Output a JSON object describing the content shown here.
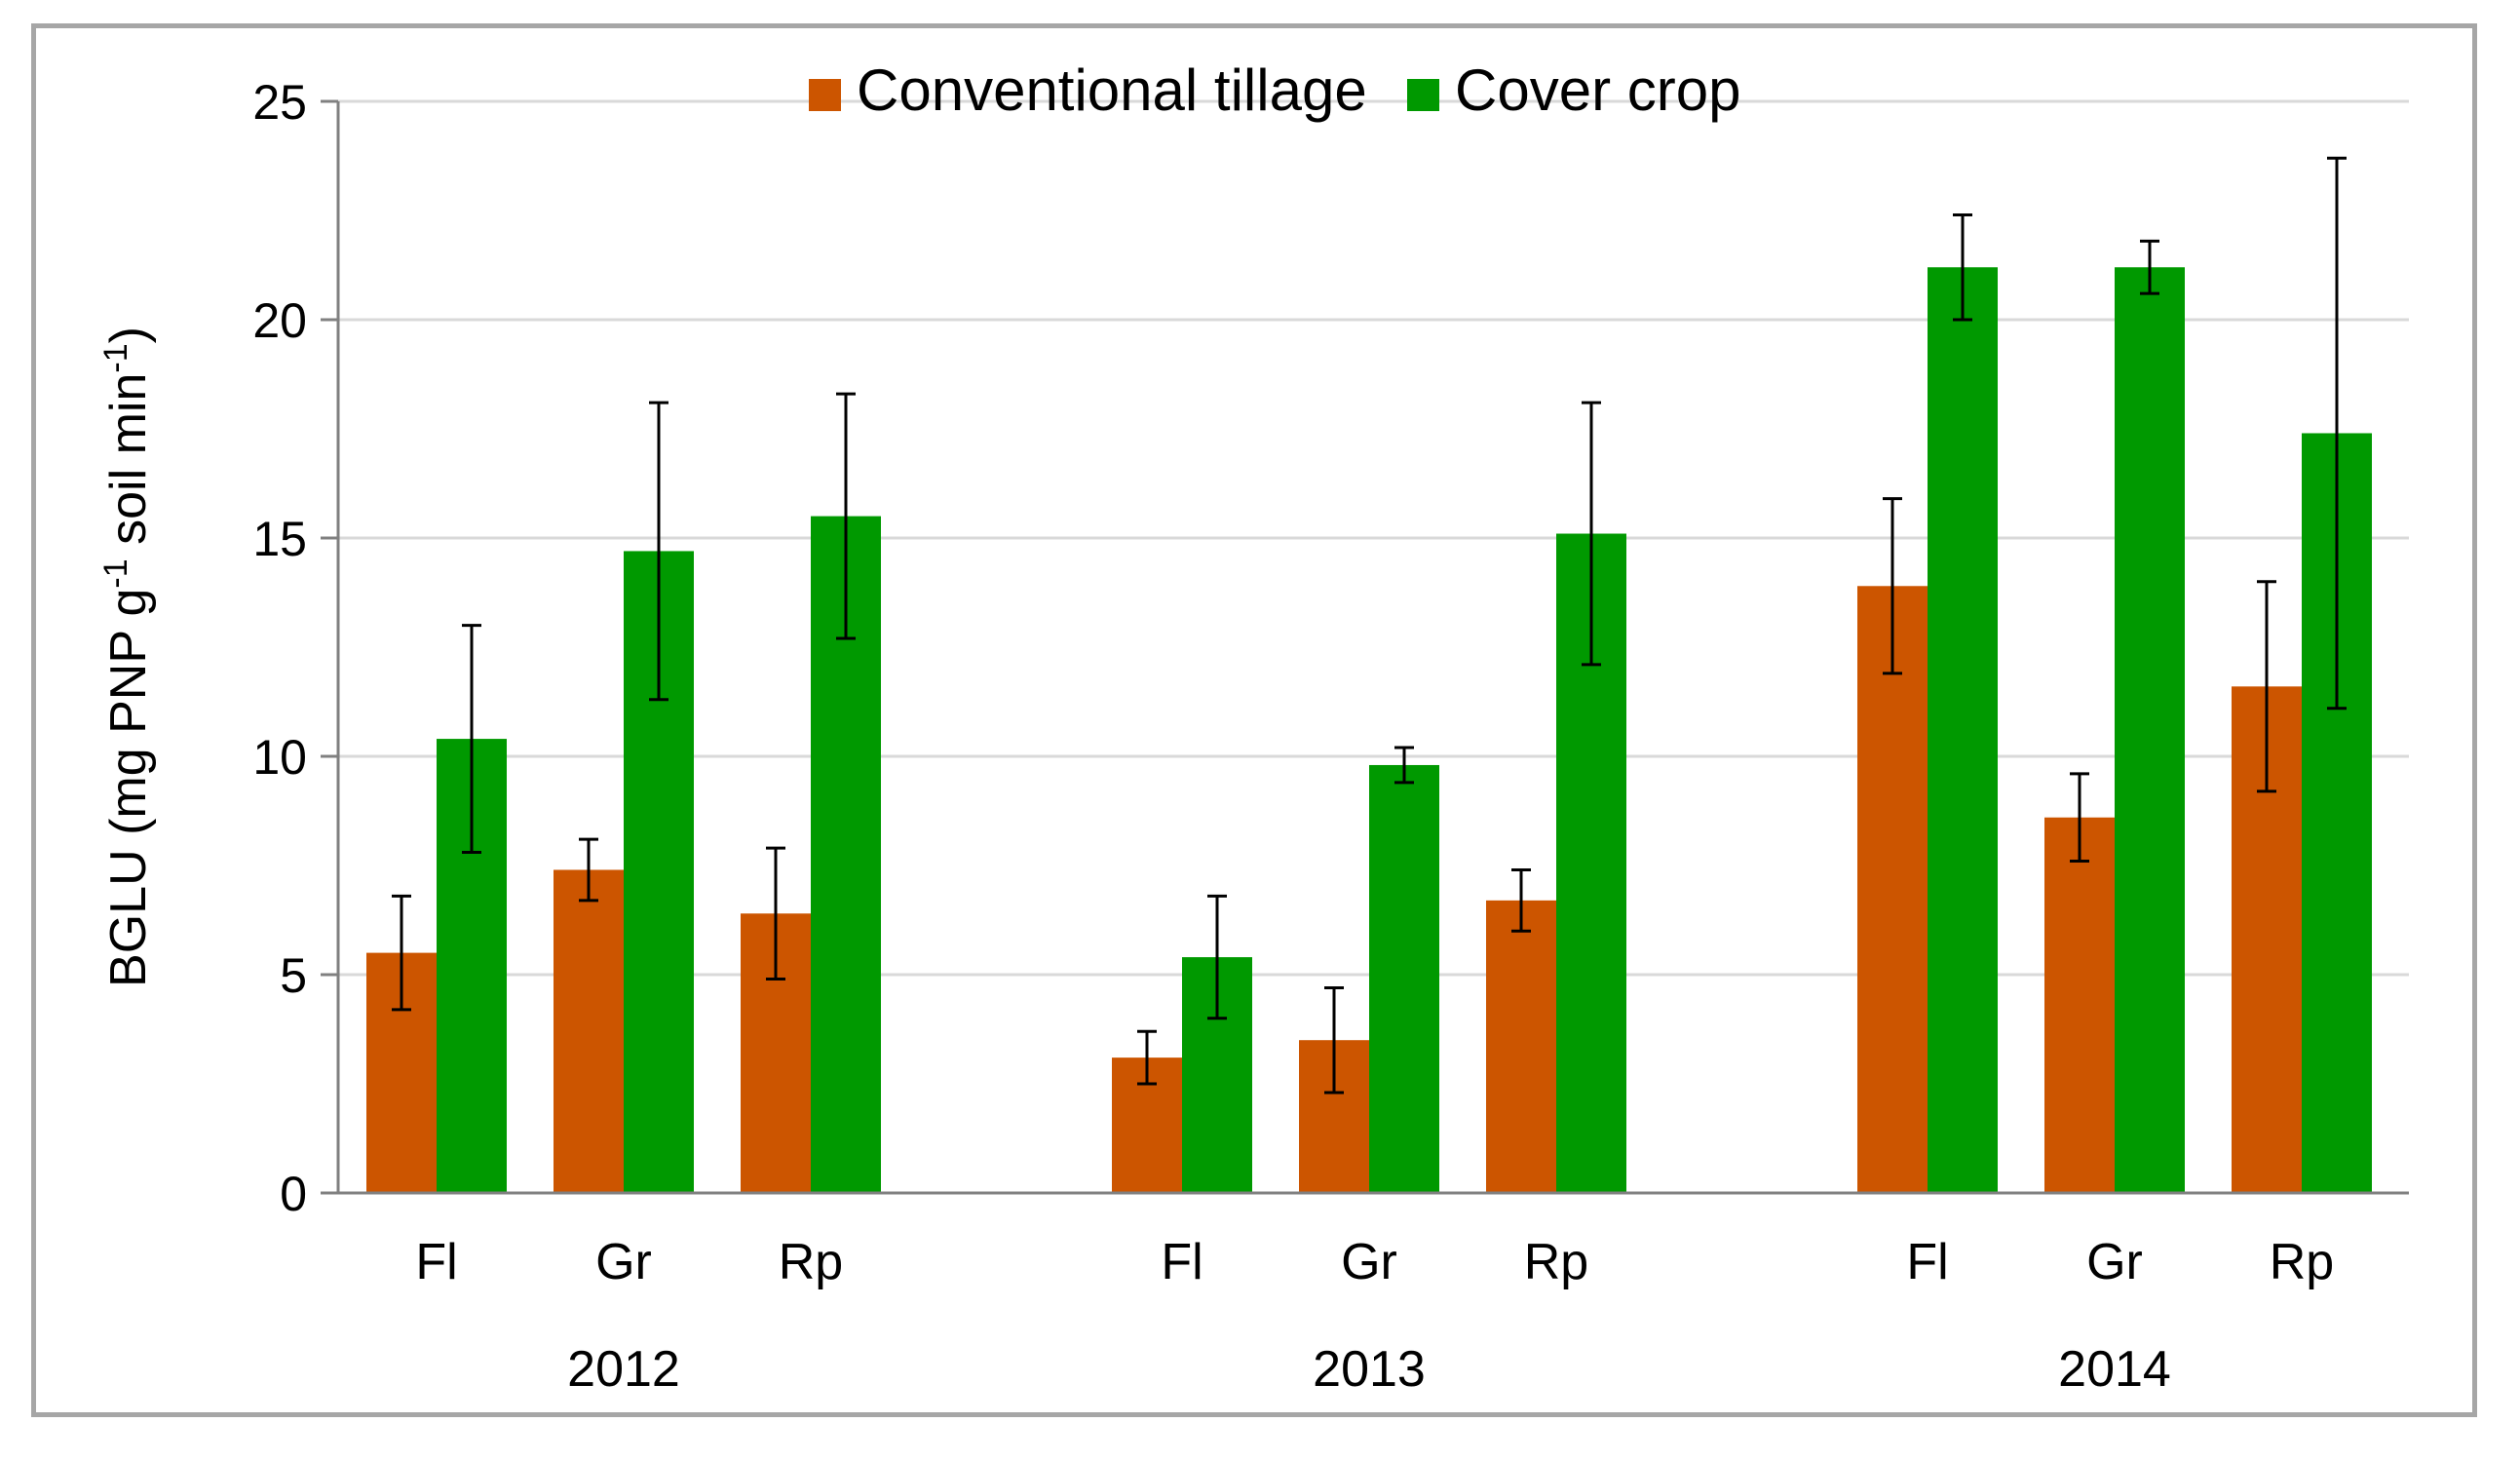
{
  "chart_data": {
    "type": "bar",
    "title": "",
    "ylabel_parts": {
      "main": "BGLU (mg PNP g",
      "sup1": "-1",
      "mid": " soil min",
      "sup2": "-1",
      "end": ")"
    },
    "ylim": [
      0,
      25
    ],
    "yticks": [
      0,
      5,
      10,
      15,
      20,
      25
    ],
    "grid": true,
    "legend_position": "top-center",
    "groups": [
      {
        "year": "2012",
        "sites": [
          "Fl",
          "Gr",
          "Rp"
        ]
      },
      {
        "year": "2013",
        "sites": [
          "Fl",
          "Gr",
          "Rp"
        ]
      },
      {
        "year": "2014",
        "sites": [
          "Fl",
          "Gr",
          "Rp"
        ]
      }
    ],
    "series": [
      {
        "name": "Conventional tillage",
        "color": "#CC5500",
        "values": [
          5.5,
          7.4,
          6.4,
          3.1,
          3.5,
          6.7,
          13.9,
          8.6,
          11.6
        ],
        "errors": [
          1.3,
          0.7,
          1.5,
          0.6,
          1.2,
          0.7,
          2.0,
          1.0,
          2.4
        ]
      },
      {
        "name": "Cover crop",
        "color": "#009900",
        "values": [
          10.4,
          14.7,
          15.5,
          5.4,
          9.8,
          15.1,
          21.2,
          21.2,
          17.4
        ],
        "errors": [
          2.6,
          3.4,
          2.8,
          1.4,
          0.4,
          3.0,
          1.2,
          0.6,
          6.3
        ]
      }
    ]
  }
}
